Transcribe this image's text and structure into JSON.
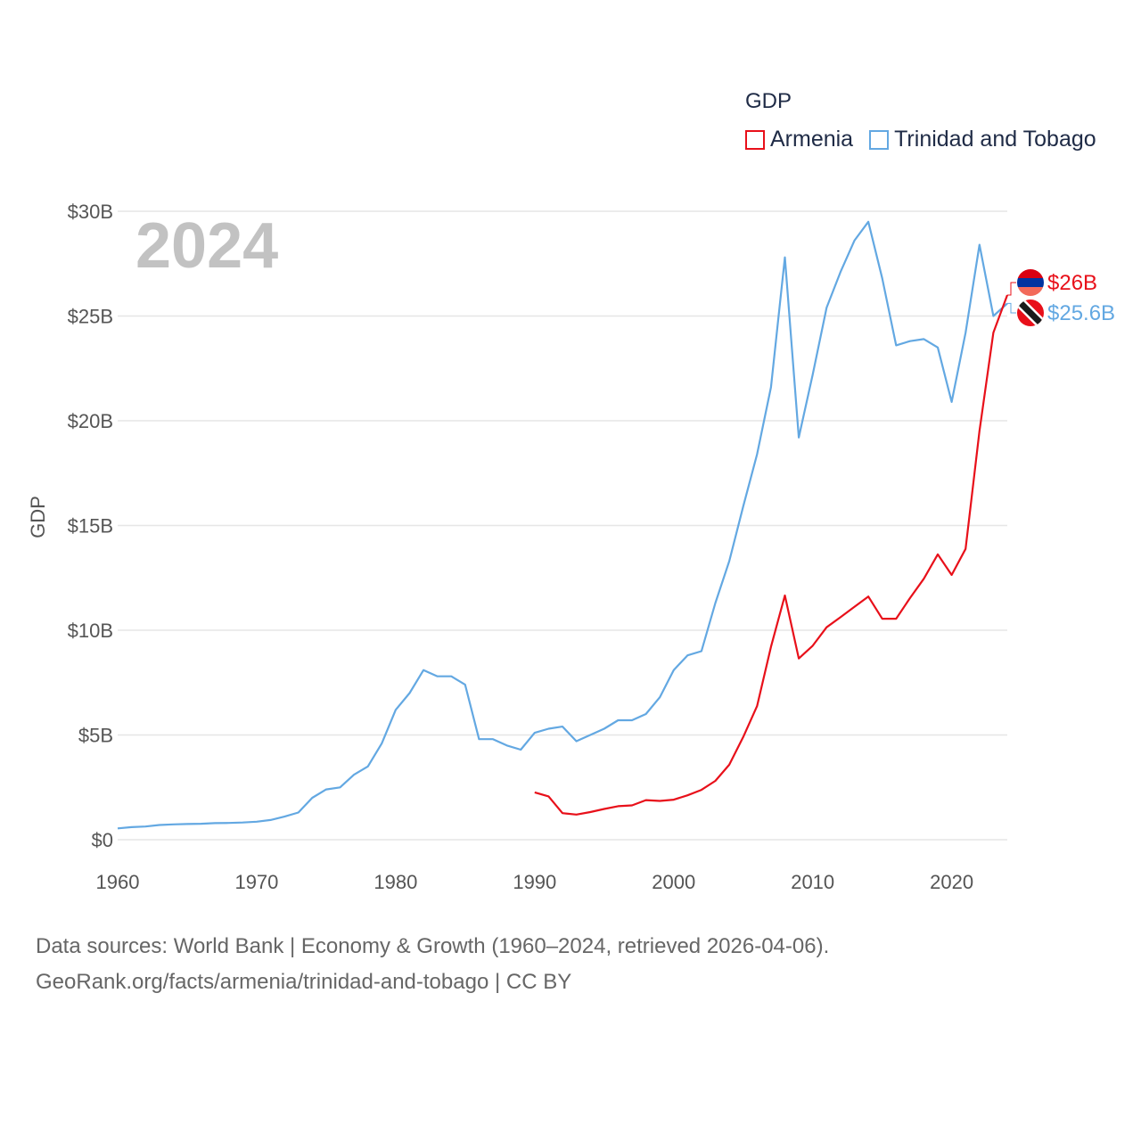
{
  "legend": {
    "title": "GDP",
    "items": [
      {
        "label": "Armenia",
        "color": "#e8101a"
      },
      {
        "label": "Trinidad and Tobago",
        "color": "#63a8e2"
      }
    ]
  },
  "source": {
    "line1": "Data sources: World Bank | Economy & Growth (1960–2024, retrieved 2026-04-06).",
    "line2": "GeoRank.org/facts/armenia/trinidad-and-tobago | CC BY"
  },
  "chart_data": {
    "type": "line",
    "title": "GDP",
    "year_label": "2024",
    "ylabel": "GDP",
    "xlabel": "",
    "xlim": [
      1960,
      2024
    ],
    "ylim": [
      0,
      30
    ],
    "x_ticks": [
      1960,
      1970,
      1980,
      1990,
      2000,
      2010,
      2020
    ],
    "y_ticks": [
      {
        "value": 0,
        "label": "$0"
      },
      {
        "value": 5,
        "label": "$5B"
      },
      {
        "value": 10,
        "label": "$10B"
      },
      {
        "value": 15,
        "label": "$15B"
      },
      {
        "value": 20,
        "label": "$20B"
      },
      {
        "value": 25,
        "label": "$25B"
      },
      {
        "value": 30,
        "label": "$30B"
      }
    ],
    "grid": true,
    "legend_position": "top-right",
    "series": [
      {
        "name": "Trinidad and Tobago",
        "color": "#63a8e2",
        "end_label": "$25.6B",
        "x": [
          1960,
          1961,
          1962,
          1963,
          1964,
          1965,
          1966,
          1967,
          1968,
          1969,
          1970,
          1971,
          1972,
          1973,
          1974,
          1975,
          1976,
          1977,
          1978,
          1979,
          1980,
          1981,
          1982,
          1983,
          1984,
          1985,
          1986,
          1987,
          1988,
          1989,
          1990,
          1991,
          1992,
          1993,
          1994,
          1995,
          1996,
          1997,
          1998,
          1999,
          2000,
          2001,
          2002,
          2003,
          2004,
          2005,
          2006,
          2007,
          2008,
          2009,
          2010,
          2011,
          2012,
          2013,
          2014,
          2015,
          2016,
          2017,
          2018,
          2019,
          2020,
          2021,
          2022,
          2023,
          2024
        ],
        "values": [
          0.54,
          0.6,
          0.63,
          0.7,
          0.73,
          0.75,
          0.76,
          0.79,
          0.8,
          0.82,
          0.86,
          0.94,
          1.1,
          1.3,
          2.0,
          2.4,
          2.5,
          3.1,
          3.5,
          4.6,
          6.2,
          7.0,
          8.1,
          7.8,
          7.8,
          7.4,
          4.8,
          4.8,
          4.5,
          4.3,
          5.1,
          5.3,
          5.4,
          4.7,
          5.0,
          5.3,
          5.7,
          5.7,
          6.0,
          6.8,
          8.1,
          8.8,
          9.0,
          11.3,
          13.3,
          15.9,
          18.4,
          21.6,
          27.8,
          19.2,
          22.2,
          25.4,
          27.1,
          28.6,
          29.5,
          26.8,
          23.6,
          23.8,
          23.9,
          23.5,
          20.9,
          24.2,
          28.4,
          25.0,
          25.6
        ]
      },
      {
        "name": "Armenia",
        "color": "#e8101a",
        "end_label": "$26B",
        "x": [
          1990,
          1991,
          1992,
          1993,
          1994,
          1995,
          1996,
          1997,
          1998,
          1999,
          2000,
          2001,
          2002,
          2003,
          2004,
          2005,
          2006,
          2007,
          2008,
          2009,
          2010,
          2011,
          2012,
          2013,
          2014,
          2015,
          2016,
          2017,
          2018,
          2019,
          2020,
          2021,
          2022,
          2023,
          2024
        ],
        "values": [
          2.26,
          2.07,
          1.27,
          1.2,
          1.32,
          1.47,
          1.6,
          1.64,
          1.89,
          1.85,
          1.91,
          2.12,
          2.38,
          2.81,
          3.58,
          4.9,
          6.38,
          9.21,
          11.66,
          8.65,
          9.26,
          10.14,
          10.62,
          11.12,
          11.61,
          10.55,
          10.55,
          11.53,
          12.46,
          13.62,
          12.64,
          13.88,
          19.51,
          24.21,
          26.0
        ]
      }
    ]
  }
}
